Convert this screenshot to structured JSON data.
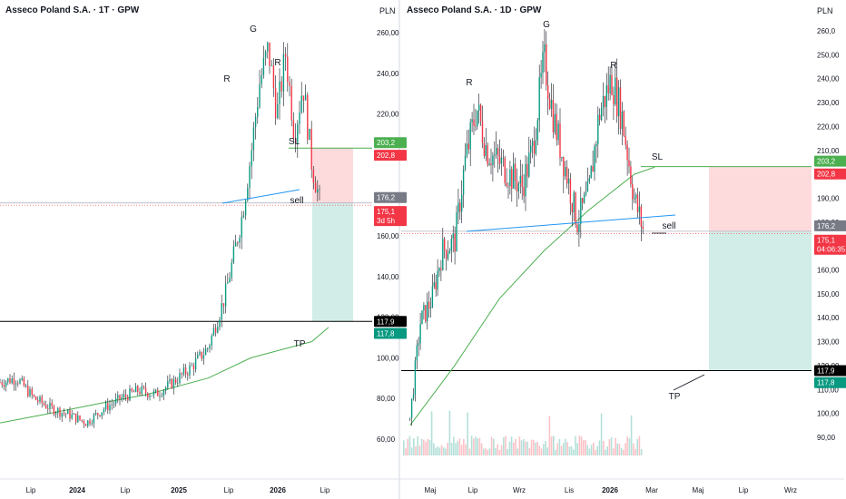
{
  "panels": [
    {
      "title": "Asseco Poland S.A. · 1T · GPW",
      "unit": "PLN",
      "y_ticks": [
        "60,00",
        "80,00",
        "100,00",
        "120,00",
        "140,00",
        "160,00",
        "180,00",
        "200,00",
        "220,00",
        "240,00",
        "260,00"
      ],
      "x_ticks": [
        "Lip",
        "2024",
        "Lip",
        "2025",
        "Lip",
        "2026",
        "Lip"
      ],
      "price_tags": [
        {
          "text": "203,2",
          "color": "#4caf50"
        },
        {
          "text": "202,8",
          "color": "#f23645"
        },
        {
          "text": "176,2",
          "color": "#787b86"
        },
        {
          "text": "175,1\n3d 5h",
          "color": "#f23645"
        },
        {
          "text": "117,9",
          "color": "#000000"
        },
        {
          "text": "117,8",
          "color": "#089981"
        }
      ],
      "annotations": [
        "G",
        "R",
        "R",
        "SL",
        "sell",
        "TP"
      ]
    },
    {
      "title": "Asseco Poland S.A. · 1D · GPW",
      "unit": "PLN",
      "y_ticks": [
        "90,00",
        "100,00",
        "110,00",
        "120,00",
        "130,00",
        "140,00",
        "150,00",
        "160,00",
        "170,00",
        "180,00",
        "190,00",
        "200,00",
        "210,00",
        "220,00",
        "230,00",
        "240,00",
        "250,00",
        "260,0"
      ],
      "x_ticks": [
        "Maj",
        "Lip",
        "Wrz",
        "Lis",
        "2026",
        "Mar",
        "Maj",
        "Lip",
        "Wrz"
      ],
      "price_tags": [
        {
          "text": "203,2",
          "color": "#4caf50"
        },
        {
          "text": "202,8",
          "color": "#f23645"
        },
        {
          "text": "176,2",
          "color": "#787b86"
        },
        {
          "text": "175,1\n04:06:35",
          "color": "#f23645"
        },
        {
          "text": "117,9",
          "color": "#000000"
        },
        {
          "text": "117,8",
          "color": "#089981"
        }
      ],
      "annotations": [
        "G",
        "R",
        "R",
        "SL",
        "sell",
        "TP"
      ]
    }
  ],
  "chart_data": [
    {
      "type": "line",
      "title": "Asseco Poland S.A. · 1T · GPW",
      "y_unit": "PLN",
      "ylim": [
        52,
        268
      ],
      "x_tick_labels": [
        "Lip",
        "2024",
        "Lip",
        "2025",
        "Lip",
        "2026",
        "Lip"
      ],
      "series": [
        {
          "x": [
            "2023-01",
            "2023-03",
            "2023-05",
            "2023-07",
            "2023-09",
            "2023-11",
            "2024-01",
            "2024-03",
            "2024-05",
            "2024-07",
            "2024-09",
            "2024-11",
            "2025-01",
            "2025-03",
            "2025-04",
            "2025-05",
            "2025-06",
            "2025-07",
            "2025-08",
            "2025-09",
            "2025-10",
            "2025-11",
            "2025-12",
            "2026-01",
            "2026-02"
          ],
          "values": [
            88,
            90,
            80,
            75,
            72,
            68,
            75,
            80,
            84,
            82,
            88,
            95,
            105,
            130,
            150,
            170,
            200,
            235,
            252,
            220,
            250,
            210,
            235,
            195,
            175
          ]
        },
        {
          "x": [
            "2023-01",
            "2023-06",
            "2024-01",
            "2024-06",
            "2025-01",
            "2025-06",
            "2026-01",
            "2026-03"
          ],
          "values": [
            68,
            72,
            78,
            82,
            90,
            100,
            108,
            115
          ]
        }
      ],
      "levels": {
        "SL": 203.2,
        "entry": 176.2,
        "last": 175.1,
        "TP": 117.9
      },
      "grid": false
    },
    {
      "type": "line",
      "title": "Asseco Poland S.A. · 1D · GPW",
      "y_unit": "PLN",
      "ylim": [
        85,
        262
      ],
      "x_tick_labels": [
        "Maj",
        "Lip",
        "Wrz",
        "Lis",
        "2026",
        "Mar",
        "Maj",
        "Lip",
        "Wrz"
      ],
      "series": [
        {
          "x": [
            "2025-04-01",
            "2025-04-15",
            "2025-05-01",
            "2025-05-15",
            "2025-06-01",
            "2025-06-15",
            "2025-07-01",
            "2025-07-15",
            "2025-08-01",
            "2025-08-15",
            "2025-09-01",
            "2025-09-15",
            "2025-10-01",
            "2025-10-15",
            "2025-11-01",
            "2025-11-15",
            "2025-12-01",
            "2025-12-15",
            "2026-01-01",
            "2026-01-15",
            "2026-02-01",
            "2026-02-15"
          ],
          "values": [
            98,
            138,
            148,
            168,
            172,
            205,
            228,
            210,
            205,
            200,
            195,
            210,
            248,
            222,
            200,
            180,
            192,
            225,
            240,
            225,
            190,
            175
          ]
        },
        {
          "x": [
            "2025-04-01",
            "2025-06-01",
            "2025-08-01",
            "2025-10-01",
            "2025-12-01",
            "2026-02-01",
            "2026-03-01"
          ],
          "values": [
            95,
            120,
            148,
            168,
            185,
            200,
            203
          ]
        }
      ],
      "levels": {
        "SL": 203.2,
        "entry": 176.2,
        "last": 175.1,
        "TP": 117.9
      },
      "grid": false
    }
  ]
}
